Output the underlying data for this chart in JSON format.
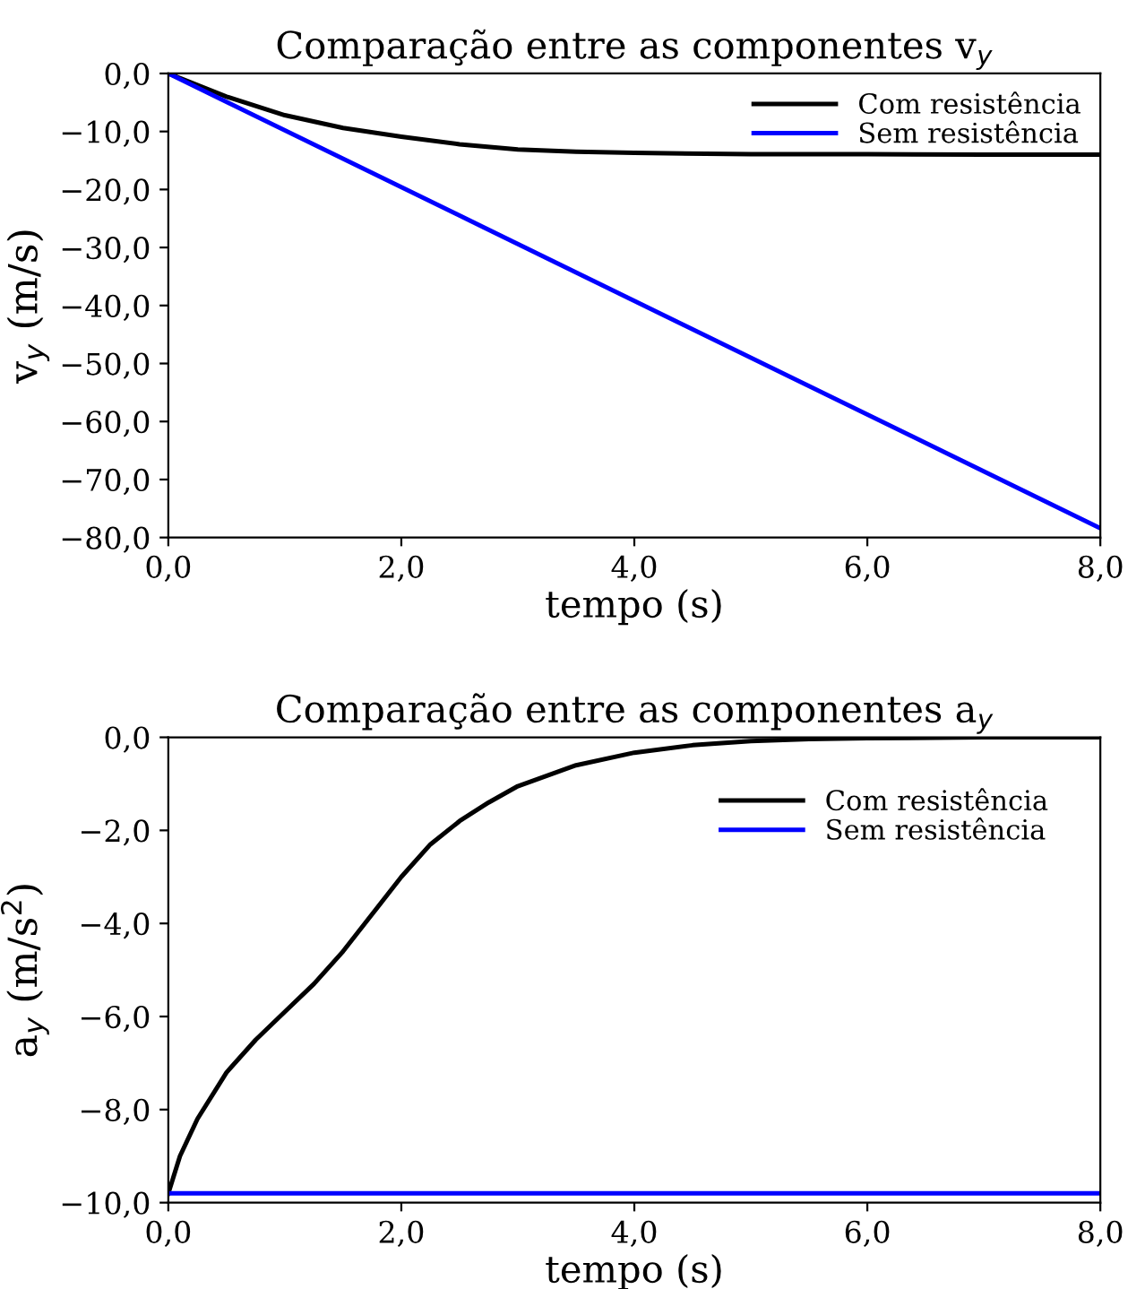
{
  "chart_data": [
    {
      "type": "line",
      "title": "Comparação entre as componentes v$_{y}$",
      "xlabel": "tempo (s)",
      "ylabel": "v$_{y}$ (m/s)",
      "xlim": [
        0,
        8
      ],
      "ylim": [
        -80,
        0
      ],
      "xticks": [
        {
          "value": 0,
          "label": "0,0"
        },
        {
          "value": 2,
          "label": "2,0"
        },
        {
          "value": 4,
          "label": "4,0"
        },
        {
          "value": 6,
          "label": "6,0"
        },
        {
          "value": 8,
          "label": "8,0"
        }
      ],
      "yticks": [
        {
          "value": 0,
          "label": "0,0"
        },
        {
          "value": -10,
          "label": "−10,0"
        },
        {
          "value": -20,
          "label": "−20,0"
        },
        {
          "value": -30,
          "label": "−30,0"
        },
        {
          "value": -40,
          "label": "−40,0"
        },
        {
          "value": -50,
          "label": "−50,0"
        },
        {
          "value": -60,
          "label": "−60,0"
        },
        {
          "value": -70,
          "label": "−70,0"
        },
        {
          "value": -80,
          "label": "−80,0"
        }
      ],
      "legend": "top right",
      "grid": false,
      "marker": "none",
      "line_style": "solid",
      "series": [
        {
          "name": "Com resistência",
          "color": "#000000",
          "x": [
            0,
            0.5,
            1,
            1.5,
            2,
            2.5,
            3,
            3.5,
            4,
            5,
            6,
            7,
            8
          ],
          "values": [
            0,
            -4.0,
            -7.2,
            -9.4,
            -10.9,
            -12.2,
            -13.1,
            -13.5,
            -13.7,
            -13.9,
            -13.9,
            -14.0,
            -14.0
          ]
        },
        {
          "name": "Sem resistência",
          "color": "#0000ff",
          "x": [
            0,
            8
          ],
          "values": [
            0,
            -78.4
          ]
        }
      ]
    },
    {
      "type": "line",
      "title": "Comparação entre as componentes a$_{y}$",
      "xlabel": "tempo (s)",
      "ylabel": "a$_{y}$ (m/s$^{2}$)",
      "xlim": [
        0,
        8
      ],
      "ylim": [
        -10,
        0
      ],
      "xticks": [
        {
          "value": 0,
          "label": "0,0"
        },
        {
          "value": 2,
          "label": "2,0"
        },
        {
          "value": 4,
          "label": "4,0"
        },
        {
          "value": 6,
          "label": "6,0"
        },
        {
          "value": 8,
          "label": "8,0"
        }
      ],
      "yticks": [
        {
          "value": 0,
          "label": "0,0"
        },
        {
          "value": -2,
          "label": "−2,0"
        },
        {
          "value": -4,
          "label": "−4,0"
        },
        {
          "value": -6,
          "label": "−6,0"
        },
        {
          "value": -8,
          "label": "−8,0"
        },
        {
          "value": -10,
          "label": "−10,0"
        }
      ],
      "legend": "top right",
      "grid": false,
      "marker": "none",
      "line_style": "solid",
      "series": [
        {
          "name": "Com resistência",
          "color": "#000000",
          "x": [
            0,
            0.1,
            0.25,
            0.5,
            0.75,
            1.0,
            1.25,
            1.5,
            1.75,
            2.0,
            2.25,
            2.5,
            2.75,
            3.0,
            3.5,
            4.0,
            4.5,
            5.0,
            5.5,
            6,
            7,
            8
          ],
          "values": [
            -9.8,
            -9.0,
            -8.2,
            -7.2,
            -6.5,
            -5.9,
            -5.3,
            -4.6,
            -3.8,
            -3.0,
            -2.3,
            -1.8,
            -1.4,
            -1.05,
            -0.6,
            -0.33,
            -0.17,
            -0.08,
            -0.04,
            -0.02,
            0.0,
            0.0
          ]
        },
        {
          "name": "Sem resistência",
          "color": "#0000ff",
          "x": [
            0,
            8
          ],
          "values": [
            -9.8,
            -9.8
          ]
        }
      ]
    }
  ]
}
